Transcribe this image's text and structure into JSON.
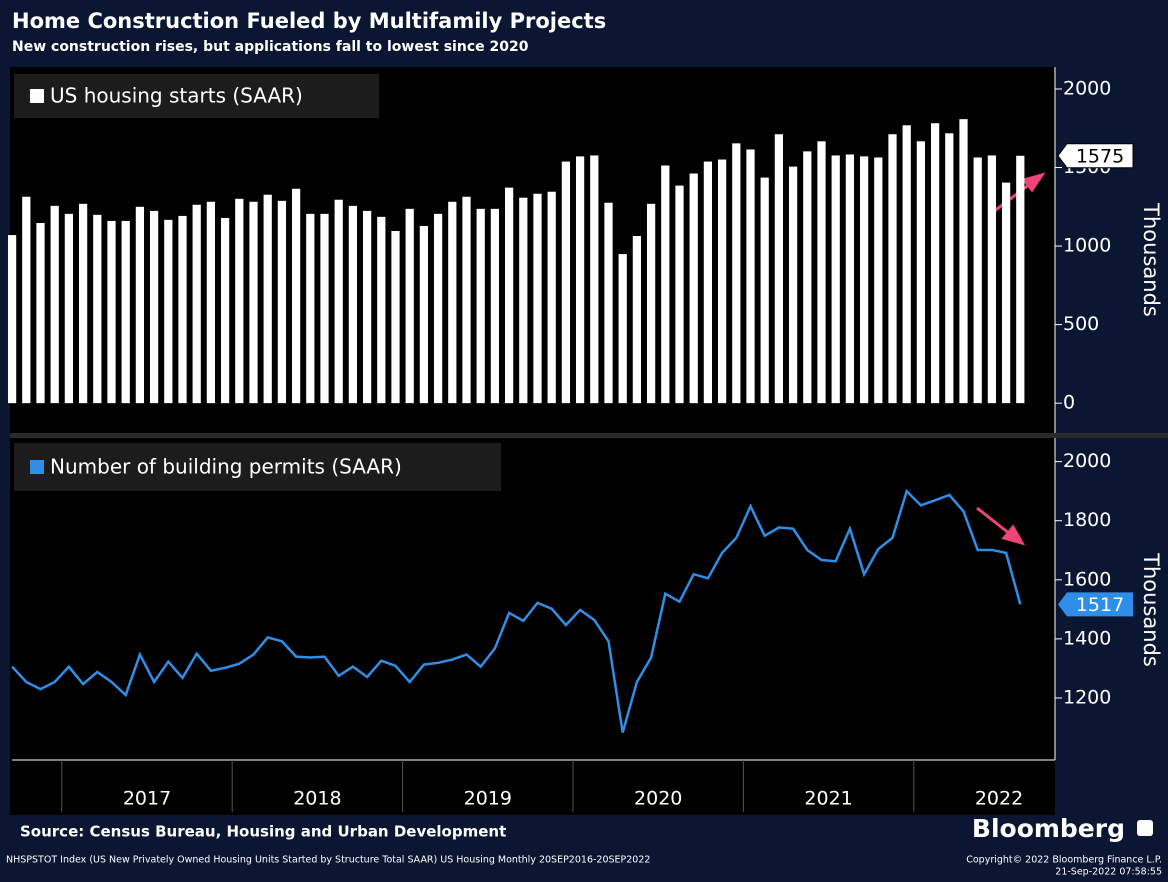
{
  "header": {
    "title": "Home Construction Fueled by Multifamily Projects",
    "subtitle": "New construction rises, but applications fall to lowest since 2020"
  },
  "chart_data": [
    {
      "type": "bar",
      "ylabel": "Thousands",
      "ylim": [
        -190,
        2140
      ],
      "yticks": [
        0,
        500,
        1000,
        1500,
        2000
      ],
      "series": [
        {
          "name": "US housing starts (SAAR)",
          "color": "#ffffff",
          "values": [
            1070,
            1314,
            1147,
            1256,
            1205,
            1269,
            1199,
            1160,
            1160,
            1250,
            1224,
            1167,
            1192,
            1263,
            1282,
            1179,
            1301,
            1282,
            1327,
            1288,
            1365,
            1205,
            1205,
            1295,
            1256,
            1224,
            1186,
            1096,
            1237,
            1128,
            1205,
            1282,
            1314,
            1237,
            1237,
            1372,
            1308,
            1333,
            1346,
            1538,
            1571,
            1577,
            1276,
            949,
            1064,
            1269,
            1513,
            1385,
            1462,
            1538,
            1551,
            1654,
            1615,
            1436,
            1712,
            1506,
            1603,
            1667,
            1577,
            1583,
            1571,
            1564,
            1712,
            1769,
            1667,
            1782,
            1718,
            1808,
            1564,
            1577,
            1404,
            1575
          ]
        }
      ]
    },
    {
      "type": "line",
      "ylabel": "Thousands",
      "ylim": [
        990,
        2080
      ],
      "yticks": [
        1200,
        1400,
        1600,
        1800,
        2000
      ],
      "categories": [
        null,
        null,
        null,
        null,
        null,
        null,
        null,
        null,
        null,
        null,
        "2017",
        null,
        null,
        null,
        null,
        null,
        null,
        null,
        null,
        null,
        null,
        null,
        "2018",
        null,
        null,
        null,
        null,
        null,
        null,
        null,
        null,
        null,
        null,
        null,
        "2019",
        null,
        null,
        null,
        null,
        null,
        null,
        null,
        null,
        null,
        null,
        null,
        "2020",
        null,
        null,
        null,
        null,
        null,
        null,
        null,
        null,
        null,
        null,
        null,
        "2021",
        null,
        null,
        null,
        null,
        null,
        null,
        null,
        null,
        null,
        null,
        null,
        "2022",
        null
      ],
      "series": [
        {
          "name": "Number of building permits (SAAR)",
          "color": "#2f8fe8",
          "values": [
            1306,
            1254,
            1230,
            1254,
            1306,
            1247,
            1288,
            1254,
            1210,
            1347,
            1254,
            1323,
            1268,
            1350,
            1292,
            1302,
            1316,
            1347,
            1405,
            1392,
            1340,
            1337,
            1340,
            1275,
            1306,
            1271,
            1326,
            1309,
            1254,
            1313,
            1319,
            1330,
            1347,
            1306,
            1368,
            1488,
            1461,
            1522,
            1502,
            1447,
            1498,
            1464,
            1392,
            1083,
            1254,
            1337,
            1553,
            1526,
            1619,
            1605,
            1691,
            1742,
            1849,
            1749,
            1777,
            1773,
            1701,
            1667,
            1663,
            1773,
            1619,
            1704,
            1742,
            1900,
            1852,
            1869,
            1887,
            1832,
            1701,
            1701,
            1691,
            1517
          ]
        }
      ]
    }
  ],
  "footer": {
    "source": "Source: Census Bureau, Housing and Urban Development",
    "brand": "Bloomberg",
    "ticker": "NHSPSTOT Index (US New Privately Owned Housing Units Started by Structure Total SAAR) US Housing  Monthly 20SEP2016-20SEP2022",
    "copyright": "Copyright© 2022 Bloomberg Finance L.P.",
    "timestamp": "21-Sep-2022 07:58:55"
  }
}
